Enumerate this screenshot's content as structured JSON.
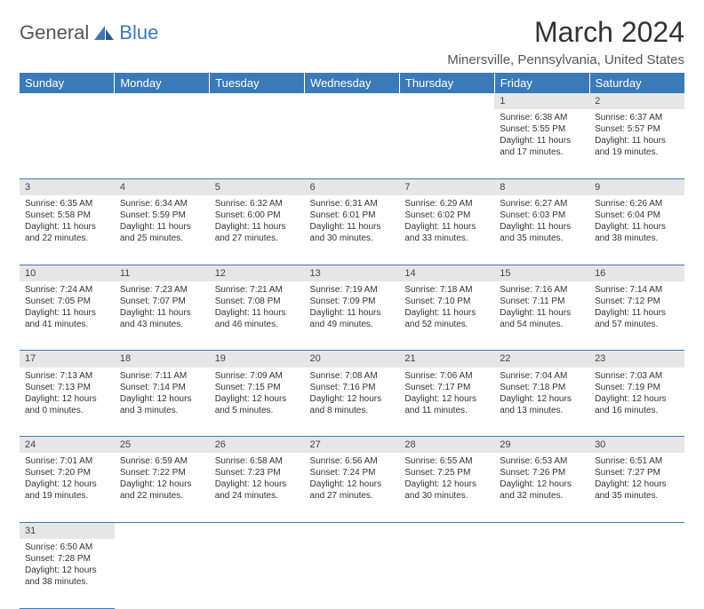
{
  "logo": {
    "text1": "General",
    "text2": "Blue"
  },
  "title": "March 2024",
  "location": "Minersville, Pennsylvania, United States",
  "colors": {
    "header_bg": "#3a7ab8",
    "header_text": "#ffffff",
    "daynum_bg": "#e6e6e6",
    "row_border": "#3a7ab8",
    "body_text": "#333333",
    "page_bg": "#ffffff"
  },
  "typography": {
    "title_fontsize": 32,
    "location_fontsize": 15,
    "dayheader_fontsize": 13,
    "daynum_fontsize": 11,
    "cell_fontsize": 10
  },
  "days_of_week": [
    "Sunday",
    "Monday",
    "Tuesday",
    "Wednesday",
    "Thursday",
    "Friday",
    "Saturday"
  ],
  "weeks": [
    [
      null,
      null,
      null,
      null,
      null,
      {
        "n": "1",
        "sr": "Sunrise: 6:38 AM",
        "ss": "Sunset: 5:55 PM",
        "dl": "Daylight: 11 hours and 17 minutes."
      },
      {
        "n": "2",
        "sr": "Sunrise: 6:37 AM",
        "ss": "Sunset: 5:57 PM",
        "dl": "Daylight: 11 hours and 19 minutes."
      }
    ],
    [
      {
        "n": "3",
        "sr": "Sunrise: 6:35 AM",
        "ss": "Sunset: 5:58 PM",
        "dl": "Daylight: 11 hours and 22 minutes."
      },
      {
        "n": "4",
        "sr": "Sunrise: 6:34 AM",
        "ss": "Sunset: 5:59 PM",
        "dl": "Daylight: 11 hours and 25 minutes."
      },
      {
        "n": "5",
        "sr": "Sunrise: 6:32 AM",
        "ss": "Sunset: 6:00 PM",
        "dl": "Daylight: 11 hours and 27 minutes."
      },
      {
        "n": "6",
        "sr": "Sunrise: 6:31 AM",
        "ss": "Sunset: 6:01 PM",
        "dl": "Daylight: 11 hours and 30 minutes."
      },
      {
        "n": "7",
        "sr": "Sunrise: 6:29 AM",
        "ss": "Sunset: 6:02 PM",
        "dl": "Daylight: 11 hours and 33 minutes."
      },
      {
        "n": "8",
        "sr": "Sunrise: 6:27 AM",
        "ss": "Sunset: 6:03 PM",
        "dl": "Daylight: 11 hours and 35 minutes."
      },
      {
        "n": "9",
        "sr": "Sunrise: 6:26 AM",
        "ss": "Sunset: 6:04 PM",
        "dl": "Daylight: 11 hours and 38 minutes."
      }
    ],
    [
      {
        "n": "10",
        "sr": "Sunrise: 7:24 AM",
        "ss": "Sunset: 7:05 PM",
        "dl": "Daylight: 11 hours and 41 minutes."
      },
      {
        "n": "11",
        "sr": "Sunrise: 7:23 AM",
        "ss": "Sunset: 7:07 PM",
        "dl": "Daylight: 11 hours and 43 minutes."
      },
      {
        "n": "12",
        "sr": "Sunrise: 7:21 AM",
        "ss": "Sunset: 7:08 PM",
        "dl": "Daylight: 11 hours and 46 minutes."
      },
      {
        "n": "13",
        "sr": "Sunrise: 7:19 AM",
        "ss": "Sunset: 7:09 PM",
        "dl": "Daylight: 11 hours and 49 minutes."
      },
      {
        "n": "14",
        "sr": "Sunrise: 7:18 AM",
        "ss": "Sunset: 7:10 PM",
        "dl": "Daylight: 11 hours and 52 minutes."
      },
      {
        "n": "15",
        "sr": "Sunrise: 7:16 AM",
        "ss": "Sunset: 7:11 PM",
        "dl": "Daylight: 11 hours and 54 minutes."
      },
      {
        "n": "16",
        "sr": "Sunrise: 7:14 AM",
        "ss": "Sunset: 7:12 PM",
        "dl": "Daylight: 11 hours and 57 minutes."
      }
    ],
    [
      {
        "n": "17",
        "sr": "Sunrise: 7:13 AM",
        "ss": "Sunset: 7:13 PM",
        "dl": "Daylight: 12 hours and 0 minutes."
      },
      {
        "n": "18",
        "sr": "Sunrise: 7:11 AM",
        "ss": "Sunset: 7:14 PM",
        "dl": "Daylight: 12 hours and 3 minutes."
      },
      {
        "n": "19",
        "sr": "Sunrise: 7:09 AM",
        "ss": "Sunset: 7:15 PM",
        "dl": "Daylight: 12 hours and 5 minutes."
      },
      {
        "n": "20",
        "sr": "Sunrise: 7:08 AM",
        "ss": "Sunset: 7:16 PM",
        "dl": "Daylight: 12 hours and 8 minutes."
      },
      {
        "n": "21",
        "sr": "Sunrise: 7:06 AM",
        "ss": "Sunset: 7:17 PM",
        "dl": "Daylight: 12 hours and 11 minutes."
      },
      {
        "n": "22",
        "sr": "Sunrise: 7:04 AM",
        "ss": "Sunset: 7:18 PM",
        "dl": "Daylight: 12 hours and 13 minutes."
      },
      {
        "n": "23",
        "sr": "Sunrise: 7:03 AM",
        "ss": "Sunset: 7:19 PM",
        "dl": "Daylight: 12 hours and 16 minutes."
      }
    ],
    [
      {
        "n": "24",
        "sr": "Sunrise: 7:01 AM",
        "ss": "Sunset: 7:20 PM",
        "dl": "Daylight: 12 hours and 19 minutes."
      },
      {
        "n": "25",
        "sr": "Sunrise: 6:59 AM",
        "ss": "Sunset: 7:22 PM",
        "dl": "Daylight: 12 hours and 22 minutes."
      },
      {
        "n": "26",
        "sr": "Sunrise: 6:58 AM",
        "ss": "Sunset: 7:23 PM",
        "dl": "Daylight: 12 hours and 24 minutes."
      },
      {
        "n": "27",
        "sr": "Sunrise: 6:56 AM",
        "ss": "Sunset: 7:24 PM",
        "dl": "Daylight: 12 hours and 27 minutes."
      },
      {
        "n": "28",
        "sr": "Sunrise: 6:55 AM",
        "ss": "Sunset: 7:25 PM",
        "dl": "Daylight: 12 hours and 30 minutes."
      },
      {
        "n": "29",
        "sr": "Sunrise: 6:53 AM",
        "ss": "Sunset: 7:26 PM",
        "dl": "Daylight: 12 hours and 32 minutes."
      },
      {
        "n": "30",
        "sr": "Sunrise: 6:51 AM",
        "ss": "Sunset: 7:27 PM",
        "dl": "Daylight: 12 hours and 35 minutes."
      }
    ],
    [
      {
        "n": "31",
        "sr": "Sunrise: 6:50 AM",
        "ss": "Sunset: 7:28 PM",
        "dl": "Daylight: 12 hours and 38 minutes."
      },
      null,
      null,
      null,
      null,
      null,
      null
    ]
  ]
}
